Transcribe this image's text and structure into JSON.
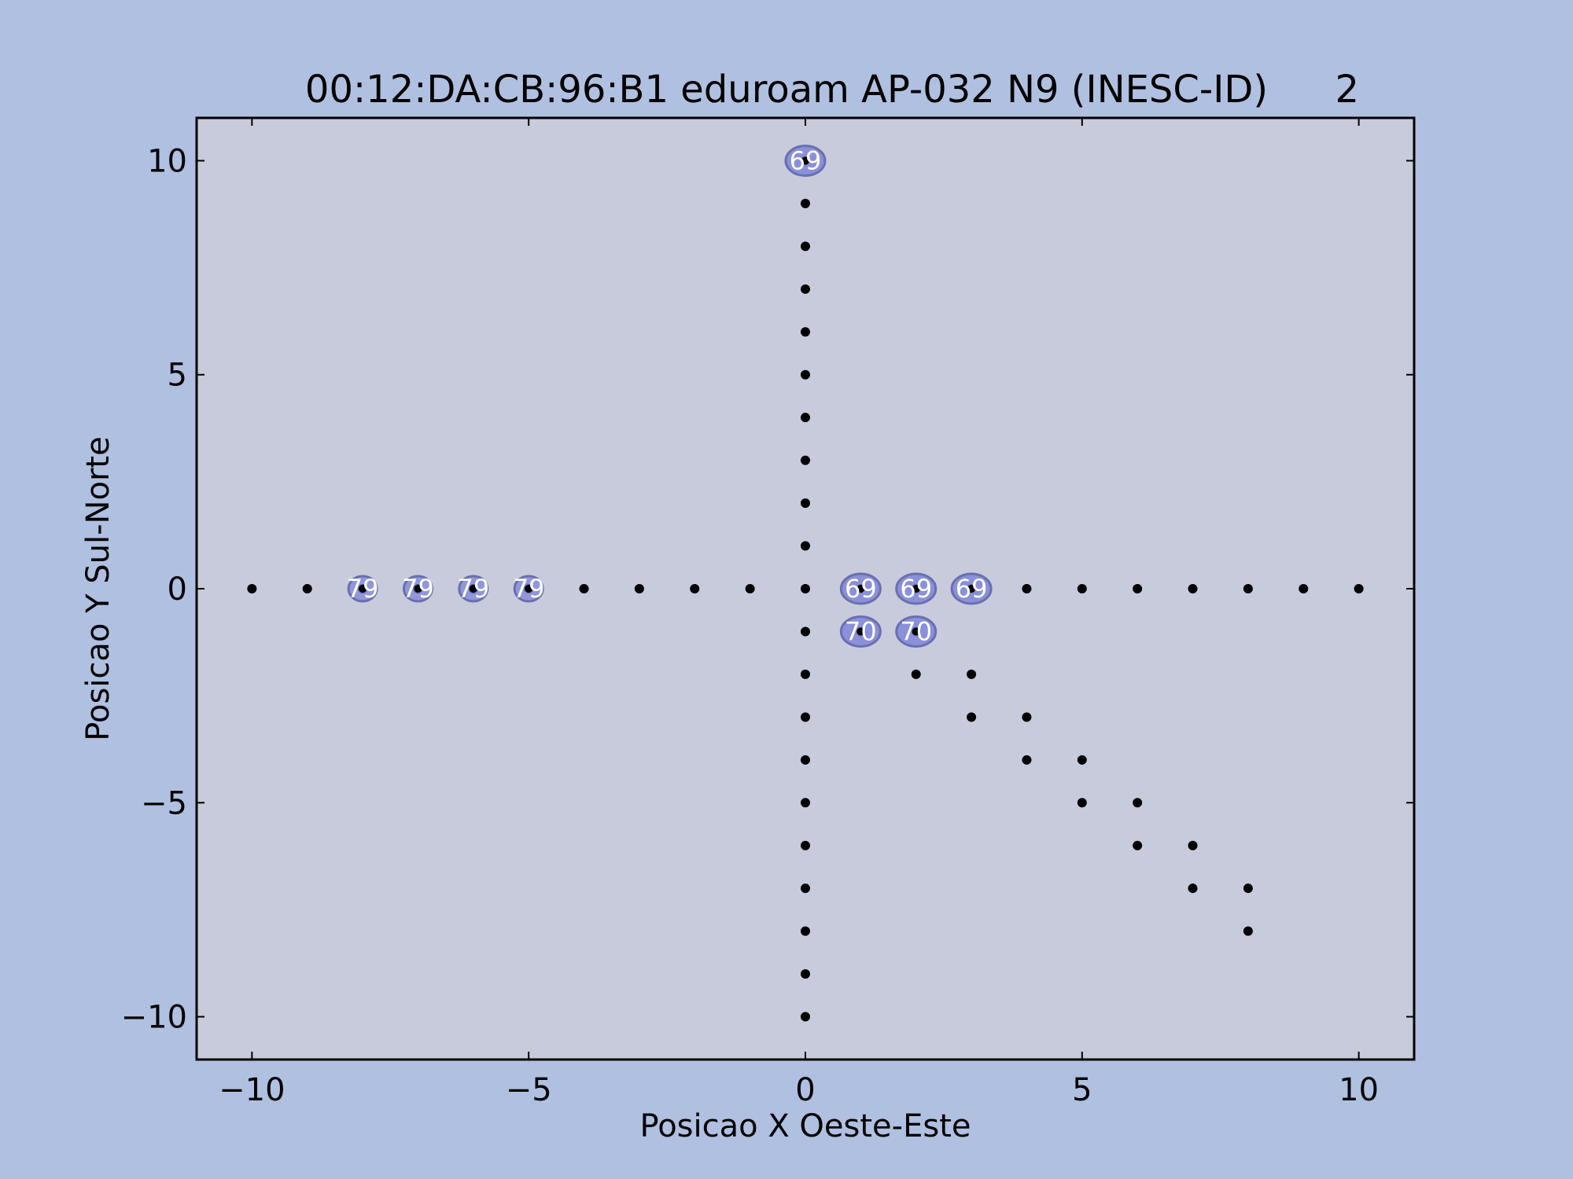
{
  "chart_data": {
    "type": "scatter",
    "title": "00:12:DA:CB:96:B1 eduroam AP-032 N9 (INESC-ID)",
    "title_suffix": "2",
    "xlabel": "Posicao X Oeste-Este",
    "ylabel": "Posicao Y Sul-Norte",
    "xlim": [
      -11,
      11
    ],
    "ylim": [
      -11,
      11
    ],
    "xticks": [
      -10,
      -5,
      0,
      5,
      10
    ],
    "yticks": [
      -10,
      -5,
      0,
      5,
      10
    ],
    "xtick_labels": [
      "−10",
      "−5",
      "0",
      "5",
      "10"
    ],
    "ytick_labels": [
      "−10",
      "−5",
      "0",
      "5",
      "10"
    ],
    "grid": false,
    "colors": {
      "figure_bg": "#b0c0e0",
      "plot_bg": "#c8cbdb",
      "point": "#000000",
      "annotation_fill": "#7f86d8",
      "annotation_edge": "#6a6fb0",
      "annotation_text": "#ffffff"
    },
    "points": [
      [
        -10,
        0
      ],
      [
        -9,
        0
      ],
      [
        -8,
        0
      ],
      [
        -7,
        0
      ],
      [
        -6,
        0
      ],
      [
        -5,
        0
      ],
      [
        -4,
        0
      ],
      [
        -3,
        0
      ],
      [
        -2,
        0
      ],
      [
        -1,
        0
      ],
      [
        0,
        0
      ],
      [
        1,
        0
      ],
      [
        2,
        0
      ],
      [
        3,
        0
      ],
      [
        4,
        0
      ],
      [
        5,
        0
      ],
      [
        6,
        0
      ],
      [
        7,
        0
      ],
      [
        8,
        0
      ],
      [
        9,
        0
      ],
      [
        10,
        0
      ],
      [
        0,
        10
      ],
      [
        0,
        9
      ],
      [
        0,
        8
      ],
      [
        0,
        7
      ],
      [
        0,
        6
      ],
      [
        0,
        5
      ],
      [
        0,
        4
      ],
      [
        0,
        3
      ],
      [
        0,
        2
      ],
      [
        0,
        1
      ],
      [
        0,
        -1
      ],
      [
        0,
        -2
      ],
      [
        0,
        -3
      ],
      [
        0,
        -4
      ],
      [
        0,
        -5
      ],
      [
        0,
        -6
      ],
      [
        0,
        -7
      ],
      [
        0,
        -8
      ],
      [
        0,
        -9
      ],
      [
        0,
        -10
      ],
      [
        1,
        -1
      ],
      [
        2,
        -1
      ],
      [
        2,
        -2
      ],
      [
        3,
        -2
      ],
      [
        3,
        -3
      ],
      [
        4,
        -3
      ],
      [
        4,
        -4
      ],
      [
        5,
        -4
      ],
      [
        5,
        -5
      ],
      [
        6,
        -5
      ],
      [
        6,
        -6
      ],
      [
        7,
        -6
      ],
      [
        7,
        -7
      ],
      [
        8,
        -7
      ],
      [
        8,
        -8
      ]
    ],
    "annotations": [
      {
        "x": 0,
        "y": 10,
        "label": "69",
        "style": "ellipse"
      },
      {
        "x": -8,
        "y": 0,
        "label": "79",
        "style": "small"
      },
      {
        "x": -7,
        "y": 0,
        "label": "79",
        "style": "small"
      },
      {
        "x": -6,
        "y": 0,
        "label": "79",
        "style": "small"
      },
      {
        "x": -5,
        "y": 0,
        "label": "79",
        "style": "small"
      },
      {
        "x": 1,
        "y": 0,
        "label": "69",
        "style": "ellipse"
      },
      {
        "x": 2,
        "y": 0,
        "label": "69",
        "style": "ellipse"
      },
      {
        "x": 3,
        "y": 0,
        "label": "69",
        "style": "ellipse"
      },
      {
        "x": 1,
        "y": -1,
        "label": "70",
        "style": "ellipse"
      },
      {
        "x": 2,
        "y": -1,
        "label": "70",
        "style": "ellipse"
      }
    ]
  }
}
